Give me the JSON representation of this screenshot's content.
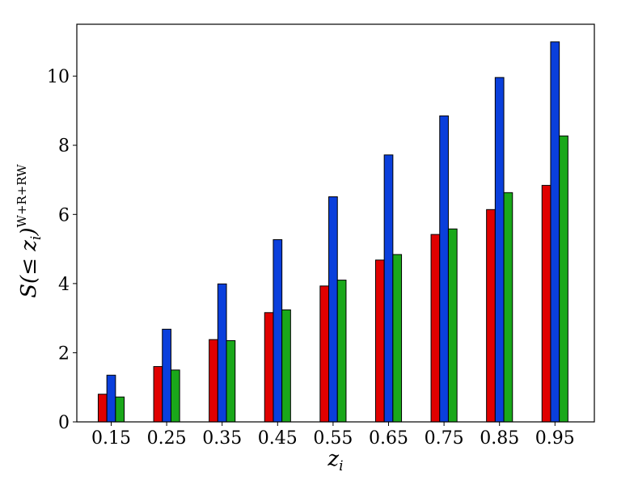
{
  "chart_data": {
    "type": "bar",
    "categories": [
      "0.15",
      "0.25",
      "0.35",
      "0.45",
      "0.55",
      "0.65",
      "0.75",
      "0.85",
      "0.95"
    ],
    "series": [
      {
        "color": "#e00000",
        "values": [
          0.8,
          1.6,
          2.38,
          3.16,
          3.93,
          4.68,
          5.42,
          6.14,
          6.84
        ]
      },
      {
        "color": "#0a3fdc",
        "values": [
          1.35,
          2.68,
          3.99,
          5.27,
          6.51,
          7.72,
          8.85,
          9.96,
          10.99
        ]
      },
      {
        "color": "#1aa81a",
        "values": [
          0.72,
          1.5,
          2.35,
          3.24,
          4.1,
          4.84,
          5.58,
          6.63,
          8.27
        ]
      }
    ],
    "xlabel": "z",
    "xlabel_subscript": "i",
    "ylabel": "S(≤ z",
    "ylabel_subscript": "i",
    "ylabel_close": ")",
    "ylabel_superscript": "W+R+RW",
    "ylim": [
      0,
      11.5
    ],
    "yticks": [
      "0",
      "2",
      "4",
      "6",
      "8",
      "10"
    ],
    "ytick_values": [
      0,
      2,
      4,
      6,
      8,
      10
    ],
    "grid": false,
    "legend": "none"
  }
}
